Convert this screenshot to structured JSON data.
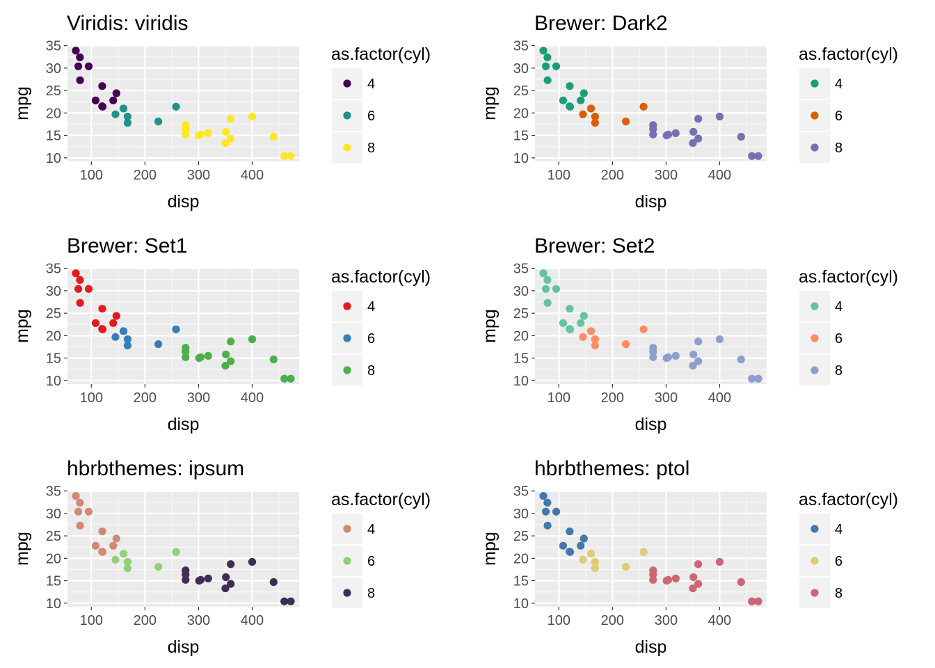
{
  "shared": {
    "x": [
      21.0,
      21.0,
      22.8,
      21.4,
      18.7,
      18.1,
      14.3,
      24.4,
      22.8,
      19.2,
      17.8,
      16.4,
      17.3,
      15.2,
      10.4,
      10.4,
      14.7,
      32.4,
      30.4,
      33.9,
      21.5,
      15.5,
      15.2,
      13.3,
      19.2,
      27.3,
      26.0,
      30.4,
      15.8,
      19.7,
      15.0,
      21.4
    ],
    "disp": [
      160,
      160,
      108,
      258,
      360,
      225,
      360,
      146.7,
      140.8,
      167.6,
      167.6,
      275.8,
      275.8,
      275.8,
      472,
      460,
      440,
      78.7,
      75.7,
      71.1,
      120.1,
      318,
      304,
      350,
      400,
      79,
      120.3,
      95.1,
      351,
      145,
      301,
      121
    ],
    "cyl": [
      6,
      6,
      4,
      6,
      8,
      6,
      8,
      4,
      4,
      6,
      6,
      8,
      8,
      8,
      8,
      8,
      8,
      4,
      4,
      4,
      4,
      8,
      8,
      8,
      8,
      4,
      4,
      4,
      8,
      6,
      8,
      4
    ],
    "xlabel": "disp",
    "ylabel": "mpg",
    "xlim": [
      55.5,
      487.6
    ],
    "ylim": [
      9.2,
      35.1
    ],
    "xticks": [
      100,
      200,
      300,
      400
    ],
    "yticks": [
      10,
      15,
      20,
      25,
      30,
      35
    ],
    "legend_title": "as.factor(cyl)",
    "legend_levels": [
      "4",
      "6",
      "8"
    ],
    "grid": true,
    "panel_color": "#ebebeb",
    "legend_placement": "right"
  },
  "chart_data": [
    {
      "type": "scatter",
      "title": "Viridis: viridis",
      "colors": {
        "4": "#440154",
        "6": "#21908c",
        "8": "#fde725"
      }
    },
    {
      "type": "scatter",
      "title": "Brewer: Dark2",
      "colors": {
        "4": "#1b9e77",
        "6": "#d95f02",
        "8": "#7570b3"
      }
    },
    {
      "type": "scatter",
      "title": "Brewer: Set1",
      "colors": {
        "4": "#e41a1c",
        "6": "#377eb8",
        "8": "#4daf4a"
      }
    },
    {
      "type": "scatter",
      "title": "Brewer: Set2",
      "colors": {
        "4": "#66c2a5",
        "6": "#fc8d62",
        "8": "#8da0cb"
      }
    },
    {
      "type": "scatter",
      "title": "hbrbthemes: ipsum",
      "colors": {
        "4": "#d18975",
        "6": "#8fd175",
        "8": "#3f2d54"
      }
    },
    {
      "type": "scatter",
      "title": "hbrbthemes: ptol",
      "colors": {
        "4": "#4477aa",
        "6": "#ddcc77",
        "8": "#cc6677"
      }
    }
  ]
}
